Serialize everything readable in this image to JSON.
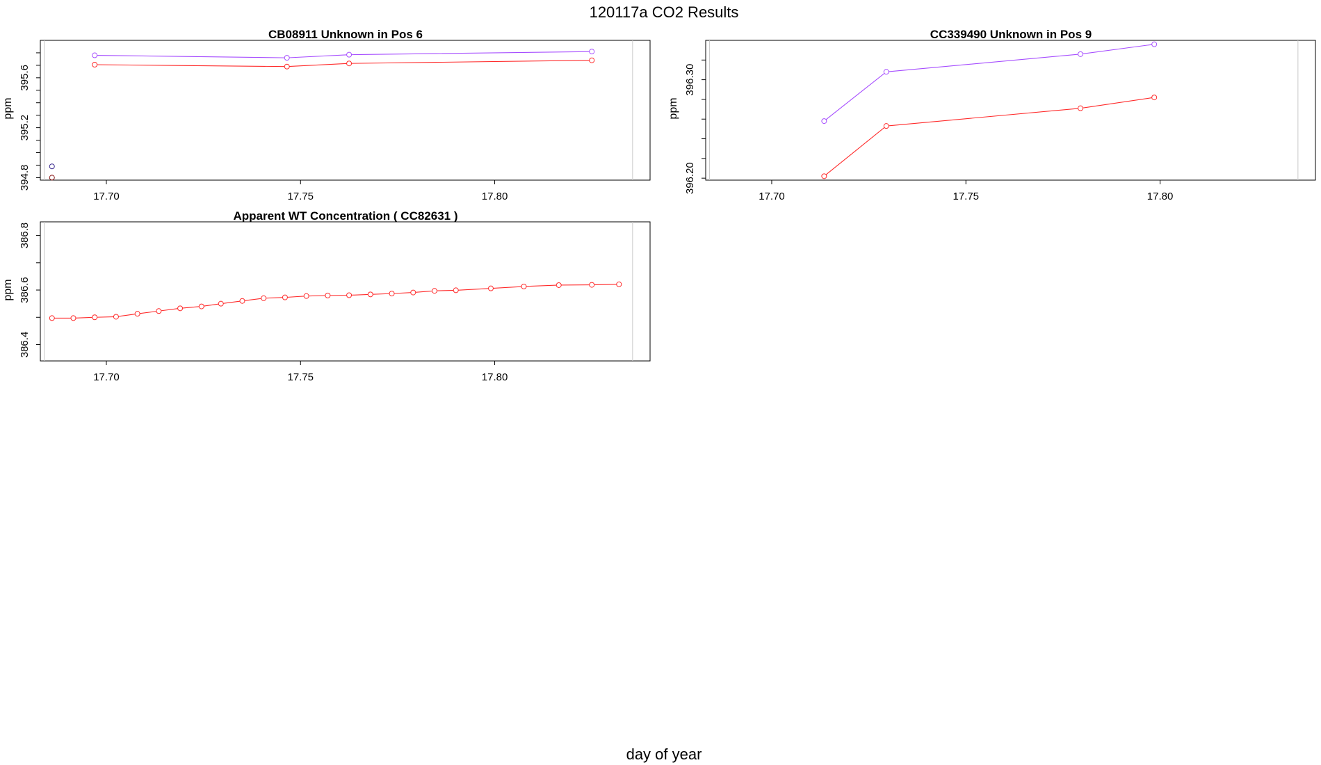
{
  "figure": {
    "title": "120117a  CO2 Results",
    "xlabel": "day of year"
  },
  "colors": {
    "series_purple": "#a64dff",
    "series_red": "#ff2a2a",
    "first_point_purple": "#3b2a8f",
    "first_point_red": "#8b1a1a",
    "frame": "#000000",
    "right_ref_line": "#c8c8c8"
  },
  "chart_data": [
    {
      "type": "line",
      "title": "CB08911    Unknown in Pos 6",
      "ylabel": "ppm",
      "xlim": [
        17.683,
        17.84
      ],
      "ylim": [
        394.78,
        395.9
      ],
      "x_ticks": [
        17.7,
        17.75,
        17.8
      ],
      "x_tick_labels": [
        "17.70",
        "17.75",
        "17.80"
      ],
      "y_ticks": [
        394.8,
        395.2,
        395.6
      ],
      "y_tick_labels": [
        "394.8",
        "395.2",
        "395.6"
      ],
      "y_minor_ticks": [
        394.8,
        394.9,
        395.0,
        395.1,
        395.2,
        395.3,
        395.4,
        395.5,
        395.6,
        395.7,
        395.8
      ],
      "left_ref_x": 17.684,
      "right_ref_x": 17.8355,
      "series": [
        {
          "color": "#a64dff",
          "x": [
            17.686,
            17.697,
            17.7465,
            17.7625,
            17.825
          ],
          "y": [
            394.89,
            395.78,
            395.76,
            395.785,
            395.81
          ],
          "first_point_isolated": true,
          "first_point_color": "#3b2a8f"
        },
        {
          "color": "#ff2a2a",
          "x": [
            17.686,
            17.697,
            17.7465,
            17.7625,
            17.825
          ],
          "y": [
            394.8,
            395.705,
            395.69,
            395.715,
            395.74
          ],
          "first_point_isolated": true,
          "first_point_color": "#8b1a1a"
        }
      ]
    },
    {
      "type": "line",
      "title": "CC339490    Unknown in Pos 9",
      "ylabel": "ppm",
      "xlim": [
        17.683,
        17.84
      ],
      "ylim": [
        396.198,
        396.34
      ],
      "x_ticks": [
        17.7,
        17.75,
        17.8
      ],
      "x_tick_labels": [
        "17.70",
        "17.75",
        "17.80"
      ],
      "y_ticks": [
        396.2,
        396.3
      ],
      "y_tick_labels": [
        "396.20",
        "396.30"
      ],
      "y_minor_ticks": [
        396.2,
        396.22,
        396.24,
        396.26,
        396.28,
        396.3,
        396.32
      ],
      "left_ref_x": 17.684,
      "right_ref_x": 17.8355,
      "series": [
        {
          "color": "#a64dff",
          "x": [
            17.7135,
            17.7295,
            17.7795,
            17.7985
          ],
          "y": [
            396.258,
            396.308,
            396.326,
            396.336
          ],
          "first_point_isolated": false
        },
        {
          "color": "#ff2a2a",
          "x": [
            17.7135,
            17.7295,
            17.7795,
            17.7985
          ],
          "y": [
            396.202,
            396.253,
            396.271,
            396.282
          ],
          "first_point_isolated": false
        }
      ]
    },
    {
      "type": "line",
      "title": "Apparent WT Concentration ( CC82631 )",
      "ylabel": "ppm",
      "xlim": [
        17.683,
        17.84
      ],
      "ylim": [
        386.34,
        386.85
      ],
      "x_ticks": [
        17.7,
        17.75,
        17.8
      ],
      "x_tick_labels": [
        "17.70",
        "17.75",
        "17.80"
      ],
      "y_ticks": [
        386.4,
        386.6,
        386.8
      ],
      "y_tick_labels": [
        "386.4",
        "386.6",
        "386.8"
      ],
      "y_minor_ticks": [
        386.4,
        386.5,
        386.6,
        386.7,
        386.8
      ],
      "left_ref_x": 17.684,
      "right_ref_x": 17.8355,
      "series": [
        {
          "color": "#ff2a2a",
          "x": [
            17.686,
            17.6915,
            17.697,
            17.7025,
            17.708,
            17.7135,
            17.719,
            17.7245,
            17.7295,
            17.735,
            17.7405,
            17.746,
            17.7515,
            17.757,
            17.7625,
            17.768,
            17.7735,
            17.779,
            17.7845,
            17.79,
            17.799,
            17.8075,
            17.8165,
            17.825,
            17.832
          ],
          "y": [
            386.497,
            386.497,
            386.5,
            386.502,
            386.513,
            386.523,
            386.533,
            386.54,
            386.55,
            386.56,
            386.57,
            386.573,
            386.578,
            386.58,
            386.581,
            386.584,
            386.587,
            386.591,
            386.597,
            386.599,
            386.606,
            386.613,
            386.618,
            386.619,
            386.621
          ],
          "first_point_isolated": false
        }
      ]
    }
  ]
}
